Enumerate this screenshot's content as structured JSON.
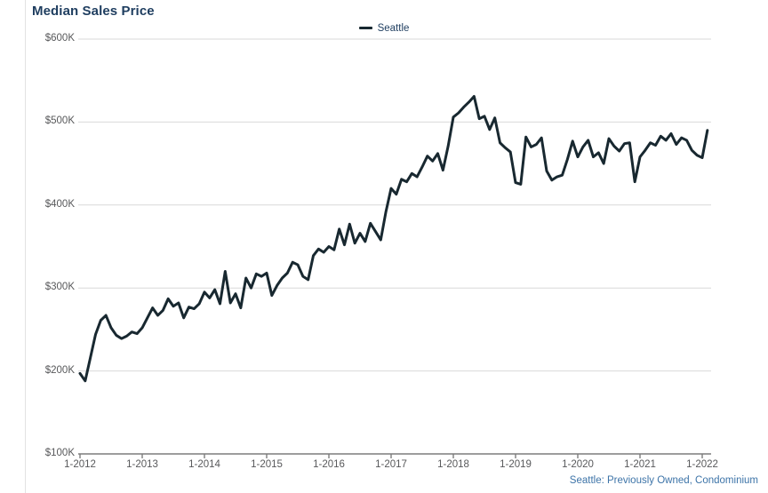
{
  "header": {
    "title": "Median Sales Price"
  },
  "legend": {
    "items": [
      {
        "label": "Seattle"
      }
    ]
  },
  "footer": {
    "source_note": "Seattle: Previously Owned, Condominium"
  },
  "colors": {
    "title": "#1e3d5f",
    "line": "#182830",
    "grid": "#d9d9d9",
    "axis": "#7d7d7d",
    "tick_label": "#58595b",
    "source_note": "#3d74a8",
    "background": "#ffffff"
  },
  "chart_data": {
    "type": "line",
    "title": "Median Sales Price",
    "grid": "horizontal-only",
    "legend_position": "top-center",
    "x_interval": "monthly",
    "x_start_month": "2012-01",
    "x_end_month": "2022-02",
    "x_tick_labels": [
      "1-2012",
      "1-2013",
      "1-2014",
      "1-2015",
      "1-2016",
      "1-2017",
      "1-2018",
      "1-2019",
      "1-2020",
      "1-2021",
      "1-2022"
    ],
    "y_tick_labels": [
      "$600K",
      "$500K",
      "$400K",
      "$300K",
      "$200K",
      "$100K"
    ],
    "y_tick_values_usd_thousands": [
      600,
      500,
      400,
      300,
      200,
      100
    ],
    "ylim_usd_thousands": [
      100,
      600
    ],
    "series": [
      {
        "name": "Seattle",
        "unit": "USD thousands",
        "values": [
          197,
          188,
          216,
          244,
          261,
          267,
          252,
          243,
          239,
          242,
          247,
          245,
          252,
          264,
          276,
          267,
          273,
          287,
          278,
          282,
          264,
          277,
          275,
          281,
          295,
          288,
          298,
          281,
          320,
          282,
          293,
          276,
          312,
          300,
          317,
          314,
          318,
          291,
          303,
          312,
          318,
          331,
          328,
          314,
          310,
          339,
          347,
          343,
          350,
          346,
          371,
          352,
          377,
          354,
          366,
          356,
          378,
          368,
          358,
          392,
          420,
          413,
          431,
          428,
          438,
          434,
          446,
          459,
          453,
          462,
          442,
          471,
          506,
          511,
          518,
          524,
          531,
          504,
          507,
          491,
          505,
          475,
          469,
          464,
          427,
          425,
          482,
          470,
          473,
          481,
          441,
          430,
          434,
          436,
          455,
          477,
          458,
          470,
          478,
          458,
          463,
          450,
          480,
          471,
          465,
          474,
          475,
          428,
          458,
          466,
          475,
          472,
          483,
          478,
          486,
          473,
          481,
          478,
          466,
          460,
          457,
          490
        ]
      }
    ]
  }
}
